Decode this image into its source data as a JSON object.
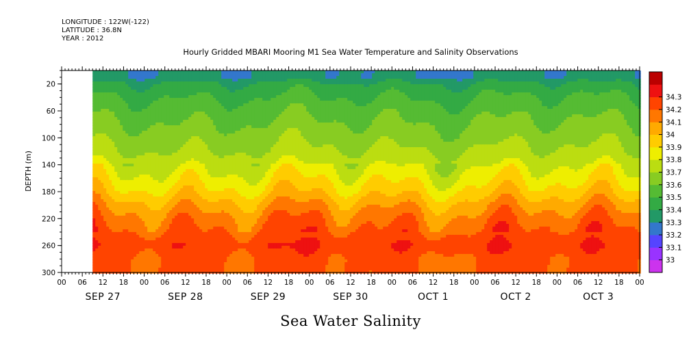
{
  "header": {
    "longitude": "LONGITUDE : 122W(-122)",
    "latitude": "LATITUDE : 36.8N",
    "year": "YEAR : 2012"
  },
  "chart_data": {
    "type": "heatmap",
    "title": "Hourly Gridded MBARI Mooring M1 Sea Water Temperature and Salinity Observations",
    "xlabel": "Sea Water Salinity",
    "ylabel": "DEPTH (m)",
    "x_hours_range": [
      0,
      168
    ],
    "x_hour_tick_labels": [
      "00",
      "06",
      "12",
      "18"
    ],
    "x_date_labels": [
      "SEP 27",
      "SEP 28",
      "SEP 29",
      "SEP 30",
      "OCT  1",
      "OCT  2",
      "OCT  3"
    ],
    "data_start_hour": 9,
    "ylim": [
      300,
      0
    ],
    "y_ticks": [
      20,
      60,
      100,
      140,
      180,
      220,
      260,
      300
    ],
    "colorbar_levels": [
      33,
      33.1,
      33.2,
      33.3,
      33.4,
      33.5,
      33.6,
      33.7,
      33.8,
      33.9,
      34,
      34.1,
      34.2,
      34.3
    ],
    "colorbar_colors": [
      "#cc33ee",
      "#9933ff",
      "#5544ff",
      "#3377cc",
      "#229966",
      "#33aa44",
      "#55bb33",
      "#88cc22",
      "#bbdd11",
      "#eeee00",
      "#ffcc00",
      "#ffaa00",
      "#ff7700",
      "#ff4400",
      "#ee1111",
      "#bb0000"
    ],
    "salinity_profile": [
      {
        "depth": 10,
        "value": 33.32
      },
      {
        "depth": 20,
        "value": 33.42
      },
      {
        "depth": 40,
        "value": 33.5
      },
      {
        "depth": 60,
        "value": 33.56
      },
      {
        "depth": 80,
        "value": 33.61
      },
      {
        "depth": 100,
        "value": 33.66
      },
      {
        "depth": 120,
        "value": 33.71
      },
      {
        "depth": 140,
        "value": 33.78
      },
      {
        "depth": 160,
        "value": 33.86
      },
      {
        "depth": 180,
        "value": 33.95
      },
      {
        "depth": 200,
        "value": 34.07
      },
      {
        "depth": 220,
        "value": 34.16
      },
      {
        "depth": 240,
        "value": 34.22
      },
      {
        "depth": 260,
        "value": 34.28
      },
      {
        "depth": 280,
        "value": 34.22
      },
      {
        "depth": 300,
        "value": 34.22
      }
    ]
  }
}
